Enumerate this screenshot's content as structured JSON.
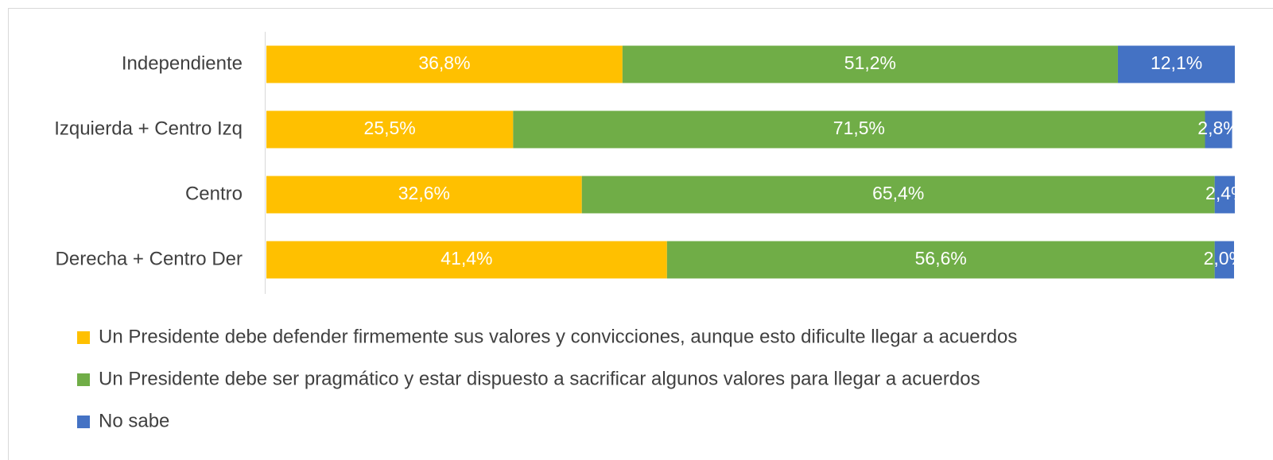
{
  "chart_data": {
    "type": "stacked-bar-horizontal",
    "categories": [
      "Independiente",
      "Izquierda + Centro Izq",
      "Centro",
      "Derecha + Centro Der"
    ],
    "xlim": [
      0,
      100
    ],
    "series": [
      {
        "name": "Un Presidente debe defender firmemente sus valores y convicciones, aunque esto dificulte llegar a acuerdos",
        "color": "#ffc000",
        "values": [
          36.8,
          25.5,
          32.6,
          41.4
        ],
        "value_labels": [
          "36,8%",
          "25,5%",
          "32,6%",
          "41,4%"
        ]
      },
      {
        "name": "Un Presidente debe ser pragmático y estar dispuesto a sacrificar algunos valores para llegar a acuerdos",
        "color": "#70ad47",
        "values": [
          51.2,
          71.5,
          65.4,
          56.6
        ],
        "value_labels": [
          "51,2%",
          "71,5%",
          "65,4%",
          "56,6%"
        ]
      },
      {
        "name": "No sabe",
        "color": "#4472c4",
        "values": [
          12.1,
          2.8,
          2.4,
          2.0
        ],
        "value_labels": [
          "12,1%",
          "2,8%",
          "2,4%",
          "2,0%"
        ]
      }
    ]
  }
}
